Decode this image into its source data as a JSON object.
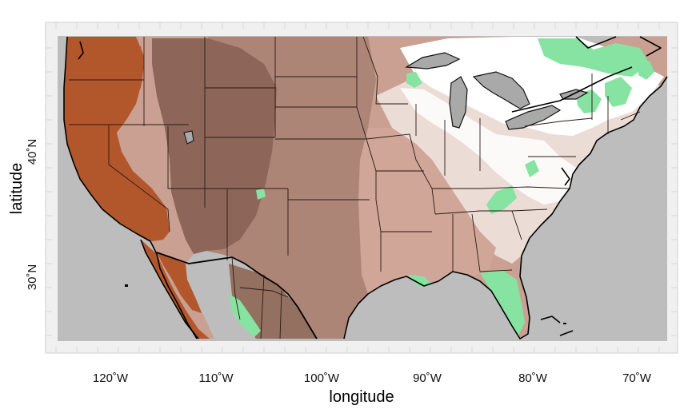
{
  "map": {
    "x_axis": {
      "title": "longitude",
      "ticks": [
        "120˚W",
        "110˚W",
        "100˚W",
        "90˚W",
        "80˚W",
        "70˚W"
      ]
    },
    "y_axis": {
      "title": "latitude",
      "ticks": [
        "30˚N",
        "40˚N"
      ]
    },
    "colors": {
      "ocean": "#bdbdbd",
      "frame": "#f0f0f0",
      "very_dark": "#b0552a",
      "dark": "#8e675a",
      "medium": "#a98476",
      "light": "#d2aea2",
      "pale": "#ead8d1",
      "white": "#ffffff",
      "green": "#8fe6a8",
      "lakes": "#a9a9a9"
    }
  }
}
